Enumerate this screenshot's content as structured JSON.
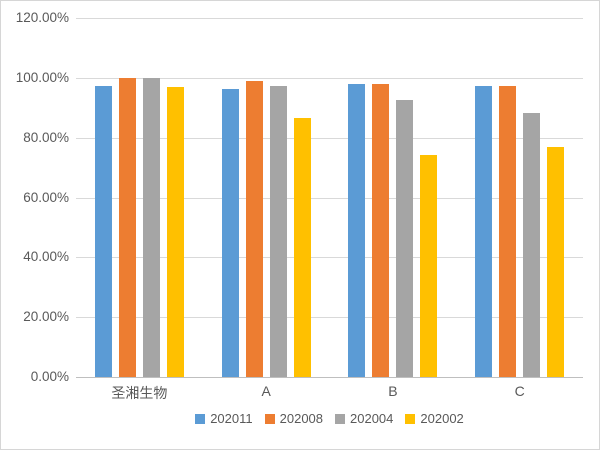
{
  "chart_data": {
    "type": "bar",
    "categories": [
      "圣湘生物",
      "A",
      "B",
      "C"
    ],
    "series": [
      {
        "name": "202011",
        "color": "#5B9BD5",
        "values": [
          97.2,
          96.3,
          98.0,
          97.2
        ]
      },
      {
        "name": "202008",
        "color": "#ED7D31",
        "values": [
          100.0,
          99.0,
          98.0,
          97.4
        ]
      },
      {
        "name": "202004",
        "color": "#A5A5A5",
        "values": [
          100.0,
          97.2,
          92.7,
          88.3
        ]
      },
      {
        "name": "202002",
        "color": "#FFC000",
        "values": [
          96.8,
          86.6,
          74.3,
          76.8
        ]
      }
    ],
    "title": "",
    "xlabel": "",
    "ylabel": "",
    "ylim": [
      0,
      120
    ],
    "ytick_step": 20,
    "ytick_labels": [
      "0.00%",
      "20.00%",
      "40.00%",
      "60.00%",
      "80.00%",
      "100.00%",
      "120.00%"
    ],
    "grid": true,
    "legend_position": "bottom"
  },
  "style": {
    "gridline_color": "#D9D9D9",
    "axis_line_color": "#BFBFBF",
    "text_color": "#595959",
    "background_color": "#FFFFFF",
    "border_color": "#D6D6D6"
  }
}
